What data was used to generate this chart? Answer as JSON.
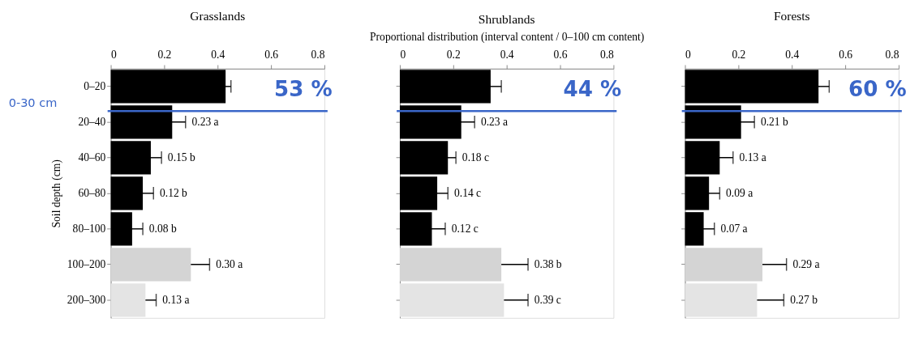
{
  "chart_data": [
    {
      "type": "bar",
      "orientation": "horizontal",
      "title": "Grasslands",
      "ylabel": "Soil depth (cm)",
      "categories": [
        "0–20",
        "20–40",
        "40–60",
        "60–80",
        "80–100",
        "100–200",
        "200–300"
      ],
      "values": [
        0.43,
        0.23,
        0.15,
        0.12,
        0.08,
        0.3,
        0.13
      ],
      "errors": [
        0.02,
        0.05,
        0.04,
        0.04,
        0.04,
        0.07,
        0.04
      ],
      "colors": [
        "#000000",
        "#000000",
        "#000000",
        "#000000",
        "#000000",
        "#d4d4d4",
        "#e4e4e4"
      ],
      "value_labels": [
        null,
        "0.23 a",
        "0.15 b",
        "0.12 b",
        "0.08 b",
        "0.30 a",
        "0.13 a"
      ],
      "xlim": [
        0,
        0.8
      ],
      "xticks": [
        0,
        0.2,
        0.4,
        0.6,
        0.8
      ],
      "ref_lines": [
        {
          "axis": "y",
          "value": "20–40",
          "label": "0-30 cm",
          "color": "#3a66c8"
        }
      ],
      "annotations": [
        "53 %"
      ]
    },
    {
      "type": "bar",
      "orientation": "horizontal",
      "title": "Shrublands",
      "xlabel": "Proportional distribution (interval content / 0–100 cm content)",
      "categories": [
        "0–20",
        "20–40",
        "40–60",
        "60–80",
        "80–100",
        "100–200",
        "200–300"
      ],
      "values": [
        0.34,
        0.23,
        0.18,
        0.14,
        0.12,
        0.38,
        0.39
      ],
      "errors": [
        0.04,
        0.05,
        0.03,
        0.04,
        0.05,
        0.1,
        0.09
      ],
      "colors": [
        "#000000",
        "#000000",
        "#000000",
        "#000000",
        "#000000",
        "#d4d4d4",
        "#e4e4e4"
      ],
      "value_labels": [
        null,
        "0.23 a",
        "0.18 c",
        "0.14 c",
        "0.12 c",
        "0.38 b",
        "0.39 c"
      ],
      "xlim": [
        0,
        0.8
      ],
      "xticks": [
        0,
        0.2,
        0.4,
        0.6,
        0.8
      ],
      "tick_labels": "x",
      "ref_lines": [
        {
          "axis": "y",
          "value": "20–40",
          "color": "#3a66c8"
        }
      ],
      "annotations": [
        "44 %"
      ]
    },
    {
      "type": "bar",
      "orientation": "horizontal",
      "title": "Forests",
      "categories": [
        "0–20",
        "20–40",
        "40–60",
        "60–80",
        "80–100",
        "100–200",
        "200–300"
      ],
      "values": [
        0.5,
        0.21,
        0.13,
        0.09,
        0.07,
        0.29,
        0.27
      ],
      "errors": [
        0.04,
        0.05,
        0.05,
        0.04,
        0.04,
        0.09,
        0.1
      ],
      "colors": [
        "#000000",
        "#000000",
        "#000000",
        "#000000",
        "#000000",
        "#d4d4d4",
        "#e4e4e4"
      ],
      "value_labels": [
        null,
        "0.21 b",
        "0.13 a",
        "0.09 a",
        "0.07 a",
        "0.29 a",
        "0.27 b"
      ],
      "xlim": [
        0,
        0.8
      ],
      "xticks": [
        0,
        0.2,
        0.4,
        0.6,
        0.8
      ],
      "tick_labels": "x",
      "ref_lines": [
        {
          "axis": "y",
          "value": "20–40",
          "color": "#3a66c8"
        }
      ],
      "annotations": [
        "60 %"
      ]
    }
  ]
}
